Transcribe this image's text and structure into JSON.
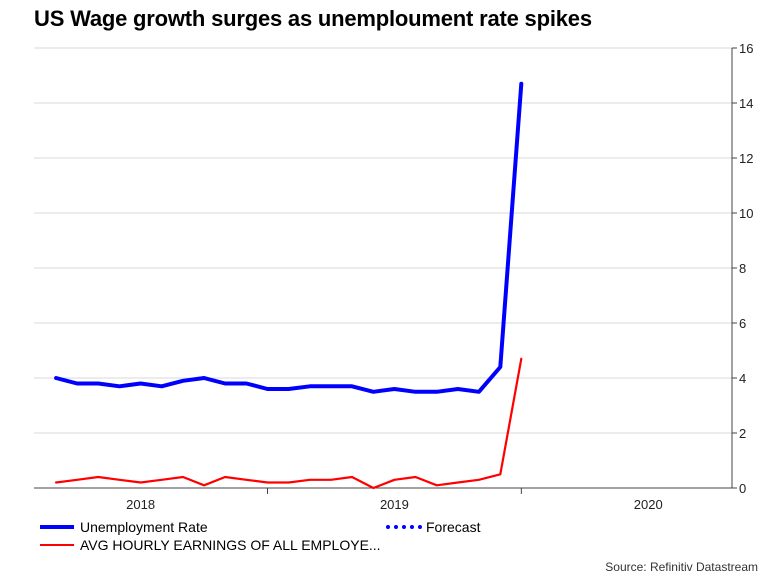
{
  "chart_data": {
    "type": "line",
    "title": "US Wage growth surges as unemploument rate spikes",
    "yaxis_side": "right",
    "ylim": [
      0,
      16
    ],
    "yticks": [
      0,
      2,
      4,
      6,
      8,
      10,
      12,
      14,
      16
    ],
    "xlim": [
      2017.58,
      2020.33
    ],
    "xticks": [
      {
        "label": "2018",
        "pos": 2018.0
      },
      {
        "label": "2019",
        "pos": 2019.0
      },
      {
        "label": "2020",
        "pos": 2020.0
      }
    ],
    "xsep": [
      2018.5,
      2019.5
    ],
    "x": [
      2017.667,
      2017.75,
      2017.833,
      2017.917,
      2018.0,
      2018.083,
      2018.167,
      2018.25,
      2018.333,
      2018.417,
      2018.5,
      2018.583,
      2018.667,
      2018.75,
      2018.833,
      2018.917,
      2019.0,
      2019.083,
      2019.167,
      2019.25,
      2019.333,
      2019.417,
      2019.5,
      2019.583,
      2019.667,
      2019.75,
      2019.833,
      2019.917,
      2020.0,
      2020.083
    ],
    "series": [
      {
        "name": "Unemployment Rate",
        "color": "#0000ff",
        "style": "solid",
        "values": [
          4.0,
          3.8,
          3.8,
          3.7,
          3.8,
          3.7,
          3.9,
          4.0,
          3.8,
          3.8,
          3.6,
          3.6,
          3.7,
          3.7,
          3.7,
          3.5,
          3.6,
          3.5,
          3.5,
          3.6,
          3.5,
          4.4,
          14.7,
          null,
          null,
          null,
          null,
          null,
          null,
          null
        ]
      },
      {
        "name": "AVG HOURLY EARNINGS OF ALL EMPLOYE...",
        "color": "#ff0000",
        "style": "solid",
        "values": [
          0.2,
          0.3,
          0.4,
          0.3,
          0.2,
          0.3,
          0.4,
          0.1,
          0.4,
          0.3,
          0.2,
          0.2,
          0.3,
          0.3,
          0.4,
          0.0,
          0.3,
          0.4,
          0.1,
          0.2,
          0.3,
          0.5,
          4.7,
          null,
          null,
          null,
          null,
          null,
          null,
          null
        ]
      }
    ],
    "legend": [
      {
        "label": "Unemployment Rate",
        "color": "#0000ff",
        "style": "solid"
      },
      {
        "label": "Forecast",
        "color": "#0000ff",
        "style": "dotted"
      },
      {
        "label": "AVG HOURLY EARNINGS OF ALL EMPLOYE...",
        "color": "#ff0000",
        "style": "solid"
      }
    ],
    "source": "Source: Refinitiv Datastream"
  }
}
